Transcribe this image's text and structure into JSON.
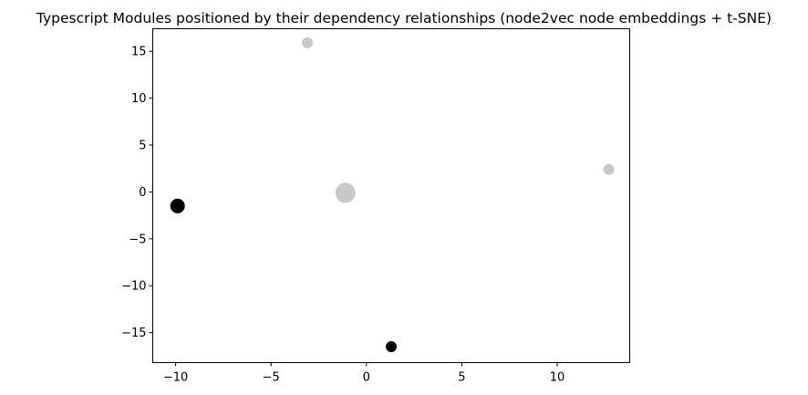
{
  "chart_data": {
    "type": "scatter",
    "title": "Typescript Modules positioned by their dependency relationships (node2vec node embeddings + t-SNE)",
    "xlabel": "",
    "ylabel": "",
    "xlim": [
      -11.2,
      13.8
    ],
    "ylim": [
      -18.2,
      17.4
    ],
    "grid": false,
    "legend": "none",
    "x_ticks": [
      -10,
      -5,
      0,
      5,
      10
    ],
    "y_ticks": [
      15,
      10,
      5,
      0,
      -5,
      -10,
      -15
    ],
    "points": [
      {
        "x": -3.1,
        "y": 15.9,
        "color": "#c8c8c8",
        "size": "small"
      },
      {
        "x": 12.7,
        "y": 2.4,
        "color": "#c8c8c8",
        "size": "small"
      },
      {
        "x": -1.1,
        "y": -0.1,
        "color": "#c8c8c8",
        "size": "large"
      },
      {
        "x": -9.9,
        "y": -1.5,
        "color": "#000000",
        "size": "medium"
      },
      {
        "x": 1.3,
        "y": -16.5,
        "color": "#000000",
        "size": "small"
      }
    ]
  }
}
